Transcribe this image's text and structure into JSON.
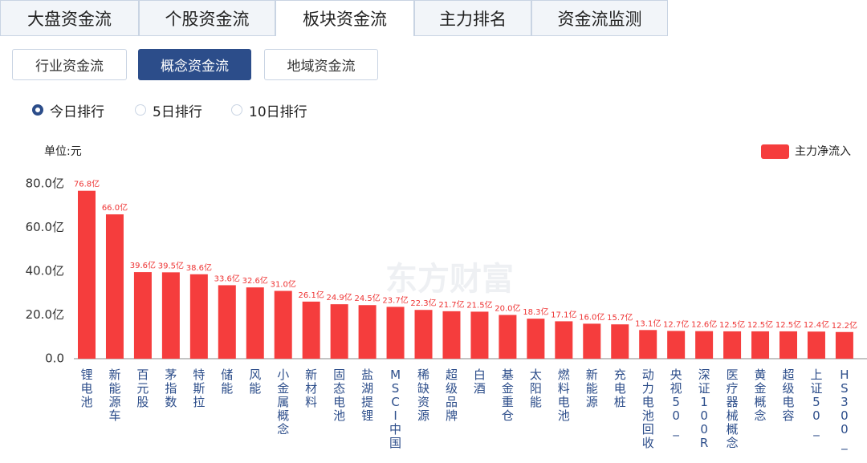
{
  "tabs": [
    "大盘资金流",
    "个股资金流",
    "板块资金流",
    "主力排名",
    "资金流监测"
  ],
  "subtabs": [
    "行业资金流",
    "概念资金流",
    "地域资金流"
  ],
  "ranking_options": [
    "今日排行",
    "5日排行",
    "10日排行"
  ],
  "watermark": "东方财富",
  "chart_data": {
    "type": "bar",
    "unit_label": "单位:元",
    "categories": [
      "锂电池",
      "新能源车",
      "百元股",
      "茅指数",
      "特斯拉",
      "储能",
      "风能",
      "小金属概念",
      "新材料",
      "固态电池",
      "盐湖提锂",
      "MSCI中国",
      "稀缺资源",
      "超级品牌",
      "白酒",
      "基金重仓",
      "太阳能",
      "燃料电池",
      "新能源",
      "充电桩",
      "动力电池回收",
      "央视50_",
      "深证100R",
      "医疗器械概念",
      "黄金概念",
      "超级电容",
      "上证50_",
      "HS300_"
    ],
    "series": [
      {
        "name": "主力净流入",
        "color": "#f53d3d",
        "values": [
          76.8,
          66.0,
          39.6,
          39.5,
          38.6,
          33.6,
          32.6,
          31.0,
          26.1,
          24.9,
          24.5,
          23.7,
          22.3,
          21.7,
          21.5,
          20.0,
          18.3,
          17.1,
          16.0,
          15.7,
          13.1,
          12.7,
          12.6,
          12.5,
          12.5,
          12.5,
          12.4,
          12.2
        ],
        "value_labels": [
          "76.8亿",
          "66.0亿",
          "39.6亿",
          "39.5亿",
          "38.6亿",
          "33.6亿",
          "32.6亿",
          "31.0亿",
          "26.1亿",
          "24.9亿",
          "24.5亿",
          "23.7亿",
          "22.3亿",
          "21.7亿",
          "21.5亿",
          "20.0亿",
          "18.3亿",
          "17.1亿",
          "16.0亿",
          "15.7亿",
          "13.1亿",
          "12.7亿",
          "12.6亿",
          "12.5亿",
          "12.5亿",
          "12.5亿",
          "12.4亿",
          "12.2亿"
        ]
      }
    ],
    "ylim": [
      0,
      80
    ],
    "yticks": [
      {
        "value": 0,
        "label": "0.0"
      },
      {
        "value": 20,
        "label": "20.0亿"
      },
      {
        "value": 40,
        "label": "40.0亿"
      },
      {
        "value": 60,
        "label": "60.0亿"
      },
      {
        "value": 80,
        "label": "80.0亿"
      }
    ],
    "grid": false,
    "legend": "top-right"
  }
}
